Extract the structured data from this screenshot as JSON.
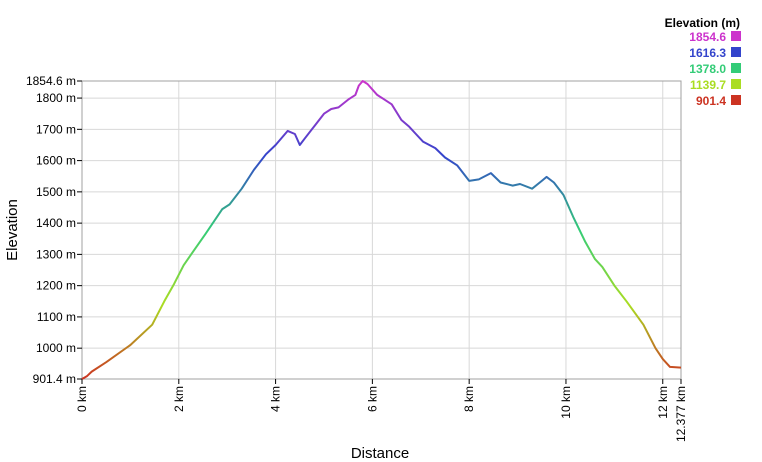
{
  "chart_data": {
    "type": "line",
    "xlabel": "Distance",
    "ylabel": "Elevation",
    "x_unit": "km",
    "y_unit": "m",
    "xlim": [
      0,
      12.377
    ],
    "ylim": [
      901.4,
      1854.6
    ],
    "x_ticks": [
      0,
      2,
      4,
      6,
      8,
      10,
      12,
      12.377
    ],
    "x_tick_labels": [
      "0 km",
      "2 km",
      "4 km",
      "6 km",
      "8 km",
      "10 km",
      "12 km",
      "12.377 km"
    ],
    "y_ticks": [
      901.4,
      1000,
      1100,
      1200,
      1300,
      1400,
      1500,
      1600,
      1700,
      1800,
      1854.6
    ],
    "y_tick_labels": [
      "901.4 m",
      "1000 m",
      "1100 m",
      "1200 m",
      "1300 m",
      "1400 m",
      "1500 m",
      "1600 m",
      "1700 m",
      "1800 m",
      "1854.6 m"
    ],
    "grid": true,
    "legend": {
      "title": "Elevation (m)",
      "placement": "top-right",
      "entries": [
        {
          "label": "1854.6",
          "color": "#cc33cc"
        },
        {
          "label": "1616.3",
          "color": "#3344cc"
        },
        {
          "label": "1378.0",
          "color": "#33cc77"
        },
        {
          "label": "1139.7",
          "color": "#aadd22"
        },
        {
          "label": "901.4",
          "color": "#cc3322"
        }
      ]
    },
    "series": [
      {
        "x": [
          0,
          0.1,
          0.2,
          0.5,
          1.0,
          1.45,
          1.7,
          1.9,
          2.1,
          2.3,
          2.55,
          2.9,
          3.05,
          3.3,
          3.55,
          3.8,
          4.0,
          4.25,
          4.4,
          4.5,
          4.6,
          4.8,
          5.0,
          5.15,
          5.3,
          5.5,
          5.65,
          5.72,
          5.8,
          5.9,
          6.1,
          6.4,
          6.6,
          6.75,
          6.9,
          7.05,
          7.3,
          7.5,
          7.75,
          8.0,
          8.2,
          8.45,
          8.65,
          8.9,
          9.05,
          9.3,
          9.5,
          9.6,
          9.75,
          9.95,
          10.15,
          10.4,
          10.6,
          10.75,
          11.0,
          11.25,
          11.6,
          11.85,
          12.0,
          12.15,
          12.377
        ],
        "y": [
          901.4,
          910,
          925,
          955,
          1010,
          1075,
          1150,
          1205,
          1265,
          1310,
          1365,
          1445,
          1460,
          1510,
          1570,
          1620,
          1650,
          1695,
          1685,
          1650,
          1670,
          1710,
          1750,
          1765,
          1770,
          1795,
          1810,
          1840,
          1854.6,
          1845,
          1810,
          1780,
          1730,
          1710,
          1685,
          1660,
          1640,
          1610,
          1585,
          1535,
          1540,
          1560,
          1530,
          1520,
          1525,
          1510,
          1535,
          1548,
          1530,
          1490,
          1420,
          1340,
          1285,
          1260,
          1200,
          1150,
          1075,
          1000,
          965,
          940,
          938
        ]
      }
    ]
  }
}
